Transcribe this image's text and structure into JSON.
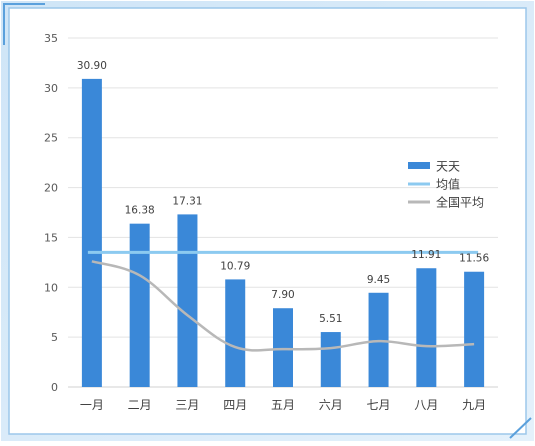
{
  "chart_data": {
    "type": "bar",
    "categories": [
      "一月",
      "二月",
      "三月",
      "四月",
      "五月",
      "六月",
      "七月",
      "八月",
      "九月"
    ],
    "series": [
      {
        "name": "天天",
        "type": "bar",
        "values": [
          30.9,
          16.38,
          17.31,
          10.79,
          7.9,
          5.51,
          9.45,
          11.91,
          11.56
        ],
        "labels": [
          "30.90",
          "16.38",
          "17.31",
          "10.79",
          "7.90",
          "5.51",
          "9.45",
          "11.91",
          "11.56"
        ],
        "color": "#3a88d8"
      },
      {
        "name": "均值",
        "type": "line",
        "values": [
          13.5,
          13.5,
          13.5,
          13.5,
          13.5,
          13.5,
          13.5,
          13.5,
          13.5
        ],
        "color": "#8ccaf0"
      },
      {
        "name": "全国平均",
        "type": "line",
        "values": [
          12.6,
          11.2,
          7.2,
          4.0,
          3.8,
          3.9,
          4.6,
          4.1,
          4.3
        ],
        "color": "#b8b8b8"
      }
    ],
    "y_ticks": [
      "0",
      "5",
      "10",
      "15",
      "20",
      "25",
      "30",
      "35"
    ],
    "ylim": [
      0,
      35
    ],
    "grid": true,
    "legend_position": "right"
  }
}
